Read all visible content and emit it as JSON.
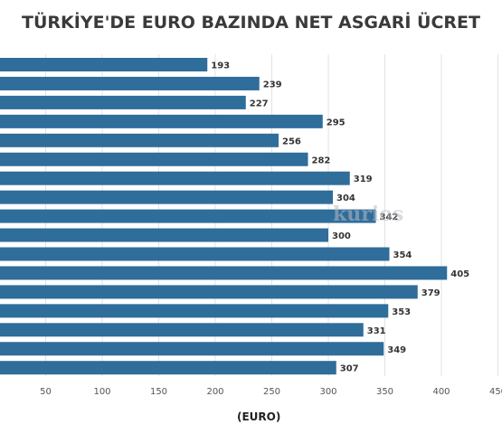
{
  "chart_data": {
    "type": "bar",
    "orientation": "horizontal",
    "title": "TÜRKİYE'DE EURO BAZINDA NET ASGARİ ÜCRET",
    "xlabel": "(EURO)",
    "ylabel": "",
    "values": [
      193,
      239,
      227,
      295,
      256,
      282,
      319,
      304,
      342,
      300,
      354,
      405,
      379,
      353,
      331,
      349,
      307
    ],
    "xticks": [
      "50",
      "100",
      "150",
      "200",
      "250",
      "300",
      "350",
      "400",
      "450"
    ],
    "xlim": [
      20,
      460
    ],
    "grid": true,
    "bar_color": "#2f6d9b",
    "data_labels": true,
    "watermark": "kurios"
  }
}
